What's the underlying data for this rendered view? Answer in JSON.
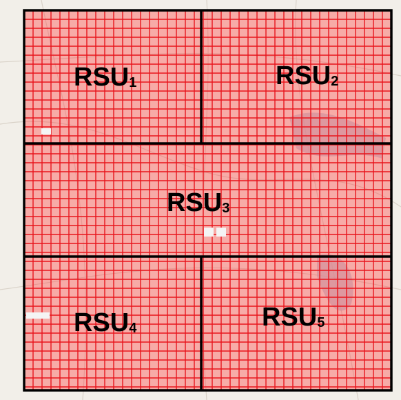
{
  "regions": [
    {
      "label": "RSU",
      "index": "1"
    },
    {
      "label": "RSU",
      "index": "2"
    },
    {
      "label": "RSU",
      "index": "3"
    },
    {
      "label": "RSU",
      "index": "4"
    },
    {
      "label": "RSU",
      "index": "5"
    }
  ]
}
